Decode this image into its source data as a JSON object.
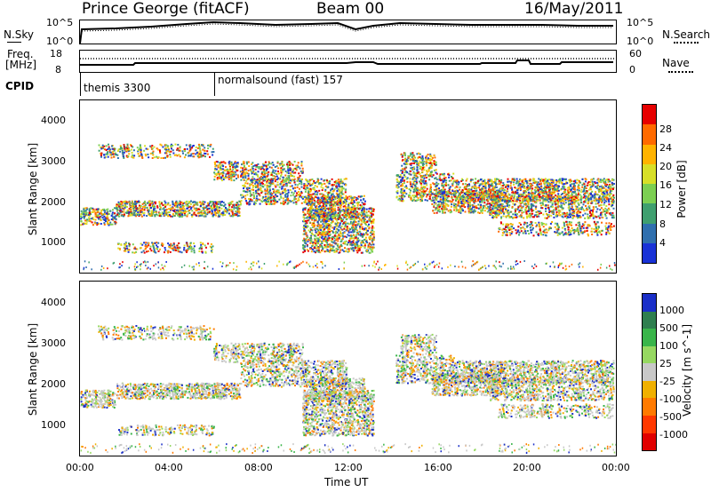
{
  "header": {
    "station": "Prince George (fitACF)",
    "beam": "Beam 00",
    "date": "16/May/2011"
  },
  "noise_panel": {
    "left_label": "N.Sky",
    "right_label": "N.Search",
    "left_ticks": [
      "10^5",
      "10^0"
    ],
    "right_ticks": [
      "10^5",
      "10^0"
    ]
  },
  "freq_panel": {
    "left_label_1": "Freq.",
    "left_label_2": "[MHz]",
    "right_label": "Nave",
    "left_ticks": [
      "18",
      "8"
    ],
    "right_ticks": [
      "60",
      "0"
    ]
  },
  "cpid": {
    "label": "CPID",
    "modes": [
      {
        "name": "themis 3300",
        "start_hour": 0
      },
      {
        "name": "normalsound (fast) 157",
        "start_hour": 6
      }
    ]
  },
  "chart_data": [
    {
      "type": "heatmap",
      "quantity": "Power",
      "ylabel": "Slant Range [km]",
      "ylim": [
        180,
        4600
      ],
      "yticks": [
        "1000",
        "2000",
        "3000",
        "4000"
      ],
      "xlim": [
        0,
        24
      ],
      "xticks": [
        "00:00",
        "04:00",
        "08:00",
        "12:00",
        "16:00",
        "20:00",
        "00:00"
      ],
      "colorbar": {
        "label": "Power [dB]",
        "ticks": [
          "28",
          "24",
          "20",
          "16",
          "12",
          "8",
          "4"
        ],
        "colors": [
          "#e60000",
          "#ff6a00",
          "#ffb300",
          "#d7df28",
          "#7ccf52",
          "#3f9f6f",
          "#2f6fae",
          "#1932d6"
        ]
      }
    },
    {
      "type": "heatmap",
      "quantity": "Velocity",
      "ylabel": "Slant Range [km]",
      "ylim": [
        180,
        4600
      ],
      "yticks": [
        "1000",
        "2000",
        "3000",
        "4000"
      ],
      "xlim": [
        0,
        24
      ],
      "xticks": [
        "00:00",
        "04:00",
        "08:00",
        "12:00",
        "16:00",
        "20:00",
        "00:00"
      ],
      "xlabel": "Time UT",
      "colorbar": {
        "label": "Velocity [m s^-1]",
        "ticks": [
          "1000",
          "500",
          "100",
          "25",
          "-25",
          "-100",
          "-500",
          "-1000"
        ],
        "colors": [
          "#1a2fc8",
          "#2f7f4f",
          "#39b54a",
          "#96d861",
          "#c8c8c8",
          "#f0b000",
          "#ff7a00",
          "#ff3800",
          "#e00000"
        ]
      }
    }
  ]
}
